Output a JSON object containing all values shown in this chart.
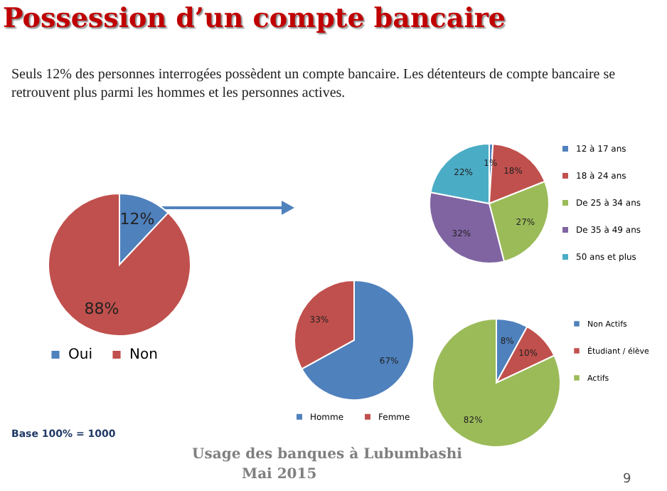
{
  "chart_data": [
    {
      "type": "pie",
      "title": "Possession d’un compte bancaire",
      "subtitle": "Seuls 12% des personnes interrogées possèdent un compte bancaire. Les détenteurs de compte bancaire se retrouvent plus parmi les hommes et les personnes actives.",
      "categories": [
        "Oui",
        "Non"
      ],
      "values": [
        12,
        88
      ],
      "colors": [
        "#4f81bd",
        "#c0504d"
      ],
      "value_labels": [
        "12%",
        "88%"
      ],
      "legend": "bottom",
      "annotations": [
        "Base 100% = 1000",
        "Usage des banques à Lubumbashi",
        "Mai 2015",
        "9"
      ]
    },
    {
      "type": "pie",
      "categories": [
        "Homme",
        "Femme"
      ],
      "values": [
        67,
        33
      ],
      "colors": [
        "#4f81bd",
        "#c0504d"
      ],
      "value_labels": [
        "67%",
        "33%"
      ],
      "legend": "bottom"
    },
    {
      "type": "pie",
      "categories": [
        "12 à 17 ans",
        "18 à 24 ans",
        "De 25 à 34 ans",
        "De 35 à 49 ans",
        "50 ans et plus"
      ],
      "values": [
        1,
        18,
        27,
        32,
        22
      ],
      "colors": [
        "#4f81bd",
        "#c0504d",
        "#9bbb59",
        "#8064a2",
        "#4bacc6"
      ],
      "value_labels": [
        "1%",
        "18%",
        "27%",
        "32%",
        "22%"
      ],
      "legend": "right"
    },
    {
      "type": "pie",
      "categories": [
        "Non Actifs",
        "Étudiant / élève",
        "Actifs"
      ],
      "values": [
        8,
        10,
        82
      ],
      "colors": [
        "#4f81bd",
        "#c0504d",
        "#9bbb59"
      ],
      "value_labels": [
        "8%",
        "10%",
        "82%"
      ],
      "legend": "right"
    }
  ]
}
